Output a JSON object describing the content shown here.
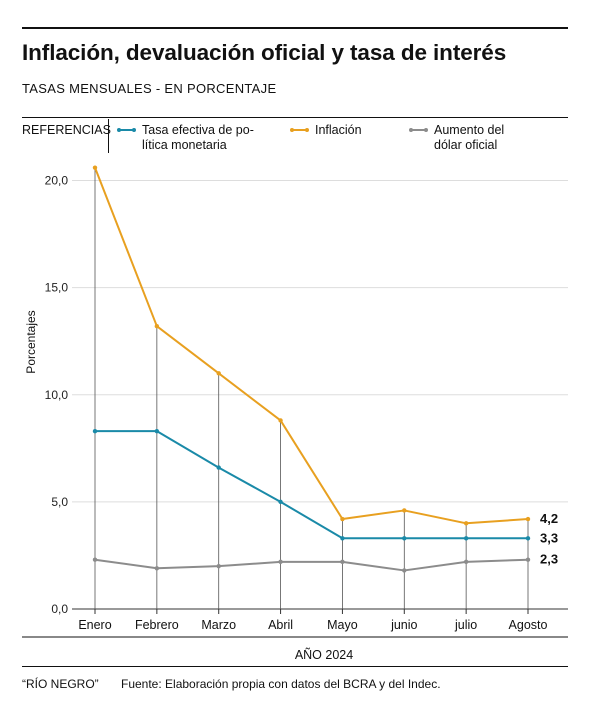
{
  "title": "Inflación, devaluación oficial y tasa de interés",
  "subtitle": "TASAS MENSUALES - EN PORCENTAJE",
  "legend": {
    "title": "REFERENCIAS",
    "items": [
      {
        "label": "Tasa efectiva de po-\nlítica monetaria",
        "color": "#1a8aa8"
      },
      {
        "label": "Inflación",
        "color": "#e8a020"
      },
      {
        "label": "Aumento del\ndólar oficial",
        "color": "#8c8c8c"
      }
    ]
  },
  "footer": {
    "brand": "“RÍO NEGRO”",
    "source": "Fuente: Elaboración propia con datos del BCRA y del Indec."
  },
  "chart_data": {
    "type": "line",
    "title": "Inflación, devaluación oficial y tasa de interés",
    "subtitle": "TASAS MENSUALES - EN PORCENTAJE",
    "xlabel": "AÑO 2024",
    "ylabel": "Porcentajes",
    "categories": [
      "Enero",
      "Febrero",
      "Marzo",
      "Abril",
      "Mayo",
      "junio",
      "julio",
      "Agosto"
    ],
    "ylim": [
      0,
      20
    ],
    "yticks": [
      "0,0",
      "5,0",
      "10,0",
      "15,0",
      "20,0"
    ],
    "grid": true,
    "series": [
      {
        "name": "Tasa efectiva de política monetaria",
        "color": "#1a8aa8",
        "values": [
          8.3,
          8.3,
          6.6,
          5.0,
          3.3,
          3.3,
          3.3,
          3.3
        ],
        "end_label": "3,3"
      },
      {
        "name": "Inflación",
        "color": "#e8a020",
        "values": [
          20.6,
          13.2,
          11.0,
          8.8,
          4.2,
          4.6,
          4.0,
          4.2
        ],
        "end_label": "4,2"
      },
      {
        "name": "Aumento del dólar oficial",
        "color": "#8c8c8c",
        "values": [
          2.3,
          1.9,
          2.0,
          2.2,
          2.2,
          1.8,
          2.2,
          2.3
        ],
        "end_label": "2,3"
      }
    ]
  }
}
